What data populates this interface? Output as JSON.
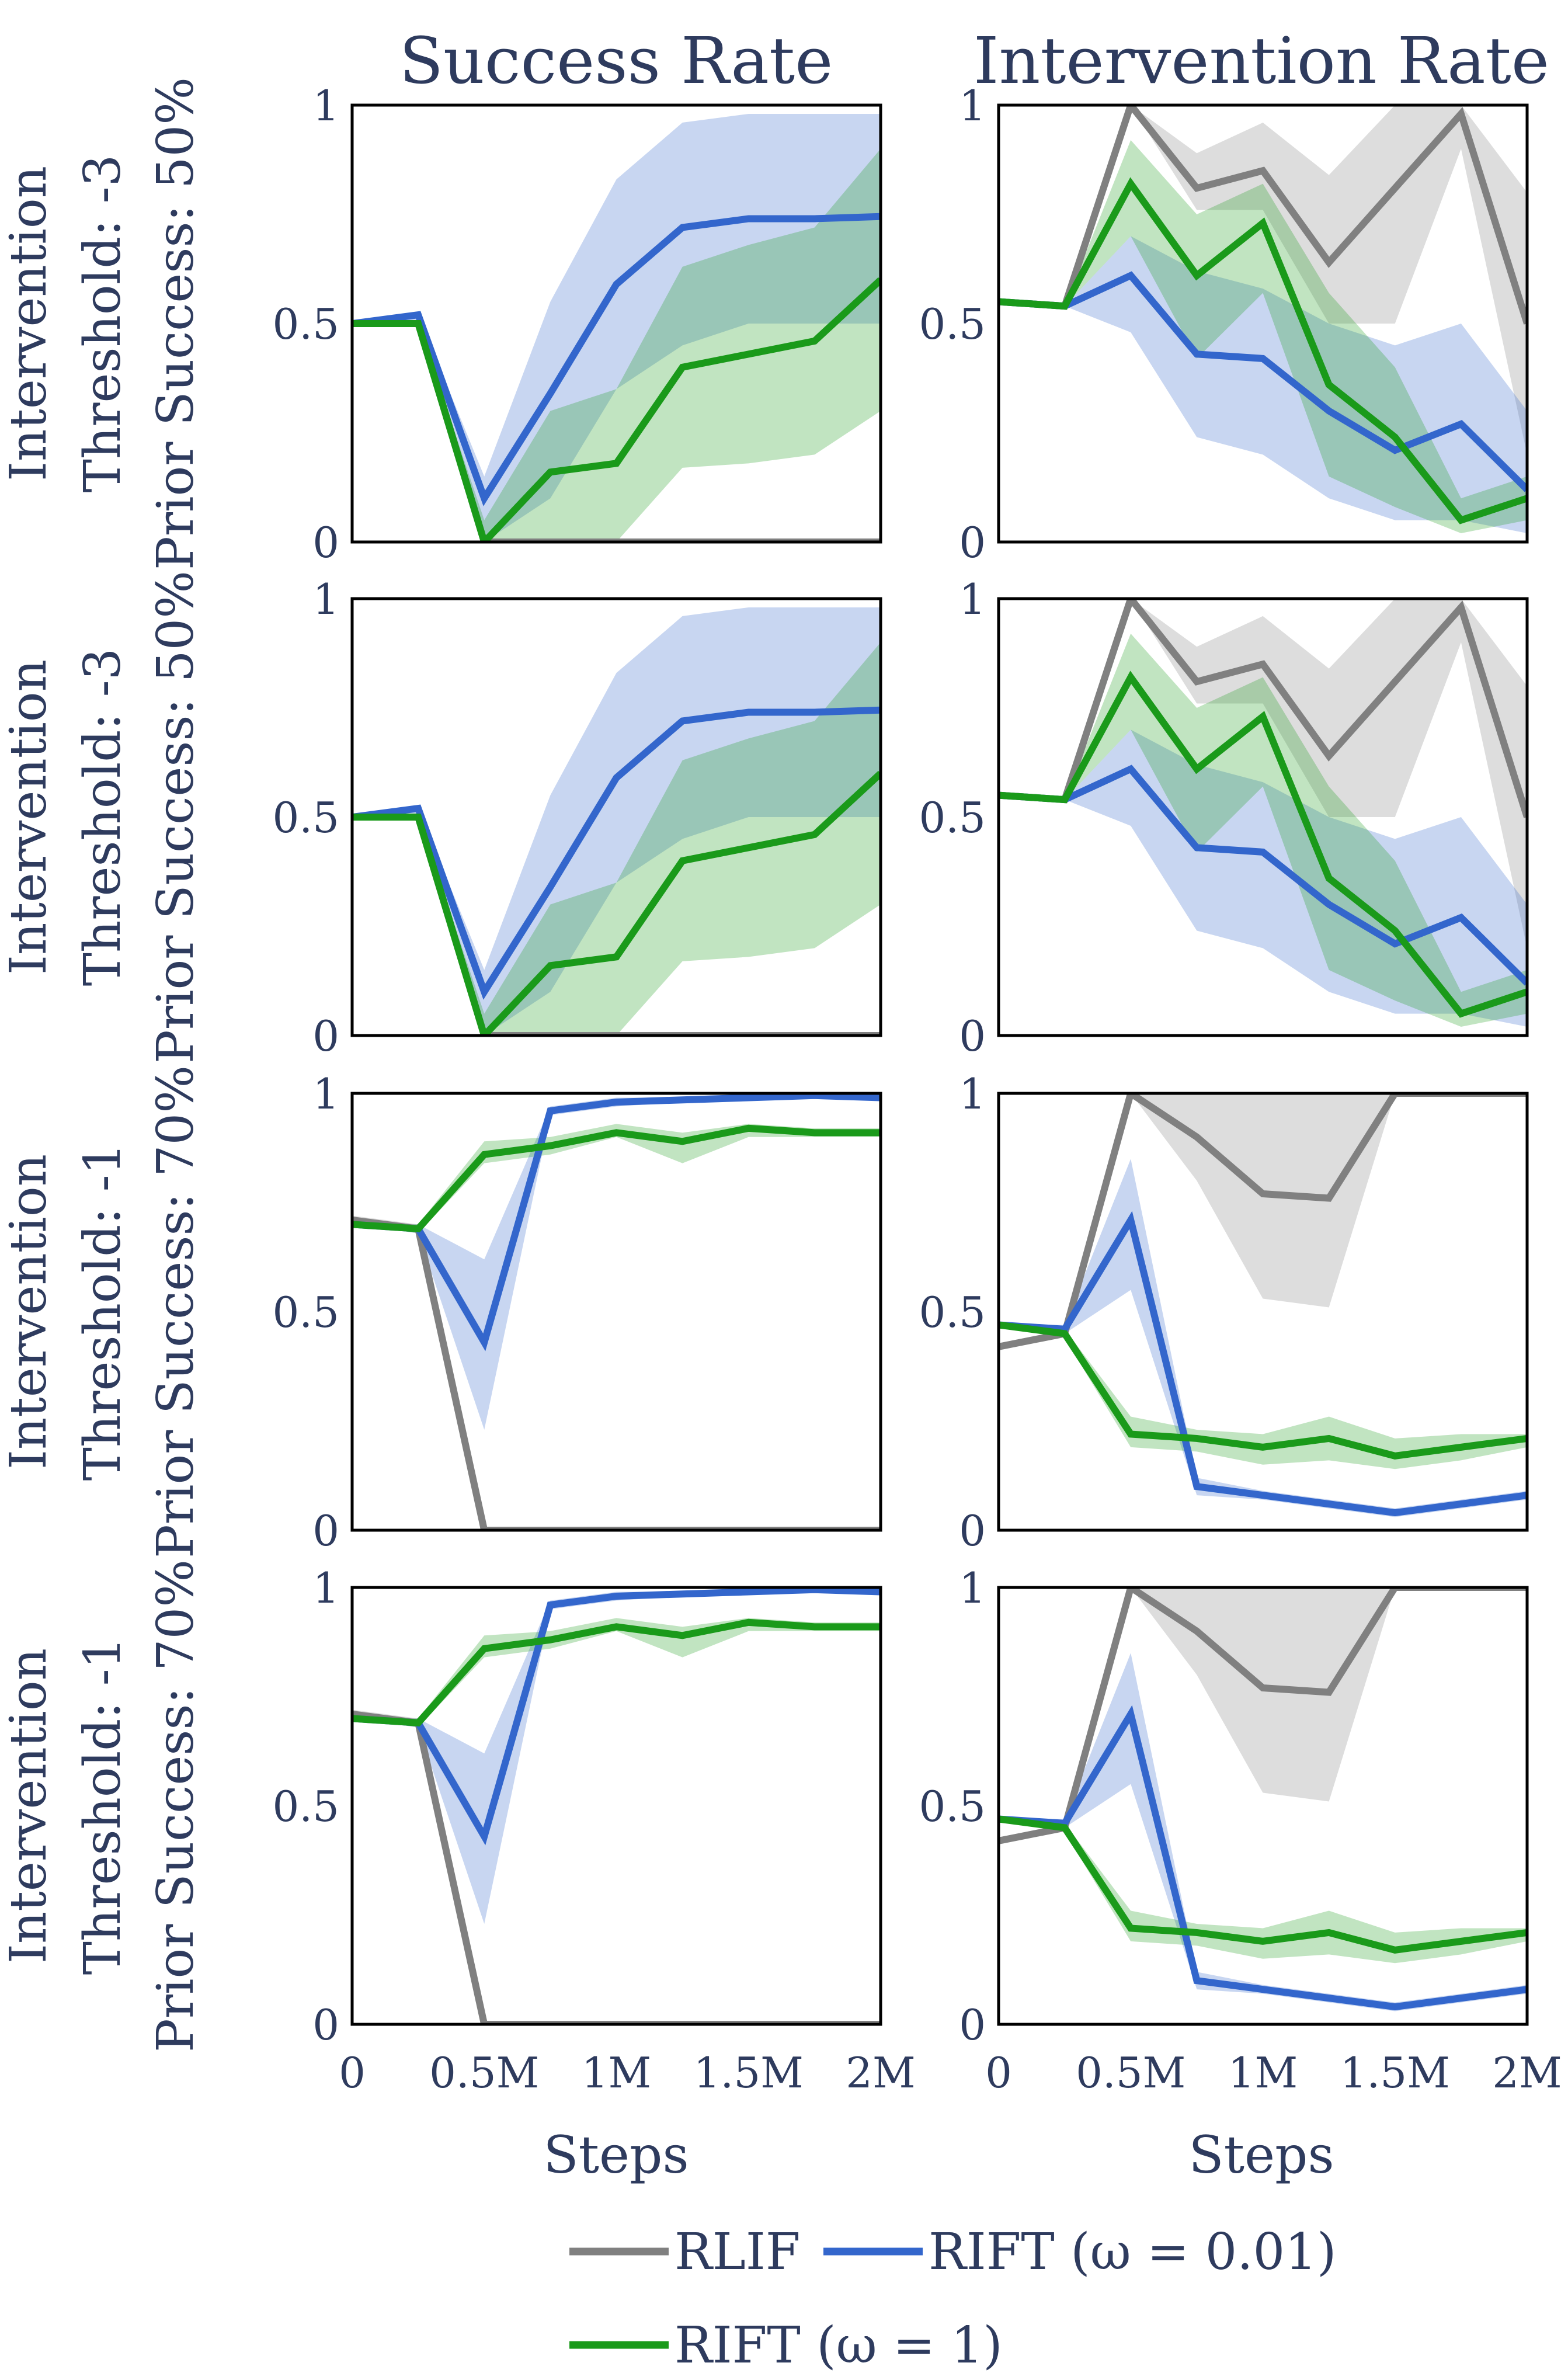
{
  "columns": [
    "Success Rate",
    "Intervention Rate"
  ],
  "rows": [
    [
      "Intervention",
      "Threshold: -3",
      "Prior Success: 50%"
    ],
    [
      "Intervention",
      "Threshold: -3",
      "Prior Success: 50%"
    ],
    [
      "Intervention",
      "Threshold: -1",
      "Prior Success: 70%"
    ],
    [
      "Intervention",
      "Threshold: -1",
      "Prior Success: 70%"
    ]
  ],
  "xlabel": "Steps",
  "x_tick_labels": [
    "0",
    "0.5M",
    "1M",
    "1.5M",
    "2M"
  ],
  "y_tick_labels": [
    "0",
    "0.5",
    "1"
  ],
  "legend": {
    "placement": "bottom",
    "entries": [
      {
        "label": "RLIF",
        "color": "#808080"
      },
      {
        "label": "RIFT (ω = 0.01)",
        "color": "#3366cc"
      },
      {
        "label": "RIFT (ω = 1)",
        "color": "#1a9a1a"
      }
    ]
  },
  "colors": {
    "RLIF": "#808080",
    "RIFT_001": "#3366cc",
    "RIFT_1": "#1a9a1a",
    "text": "#2e3b5e"
  },
  "chart_data": [
    {
      "type": "line",
      "row": 0,
      "column": "Success Rate",
      "x": [
        0,
        0.25,
        0.5,
        0.75,
        1.0,
        1.25,
        1.5,
        1.75,
        2.0
      ],
      "xlim": [
        0,
        2
      ],
      "ylim": [
        0,
        1
      ],
      "grid": false,
      "series": [
        {
          "name": "RLIF",
          "values": [
            0.5,
            0.5,
            0,
            0,
            0,
            0,
            0,
            0,
            0
          ],
          "lower": [
            0.5,
            0.5,
            0,
            0,
            0,
            0,
            0,
            0,
            0
          ],
          "upper": [
            0.5,
            0.5,
            0,
            0,
            0,
            0,
            0,
            0,
            0
          ]
        },
        {
          "name": "RIFT (ω = 0.01)",
          "values": [
            0.5,
            0.52,
            0.1,
            0.34,
            0.59,
            0.72,
            0.74,
            0.74,
            0.745
          ],
          "lower": [
            0.5,
            0.5,
            0,
            0.1,
            0.35,
            0.45,
            0.5,
            0.5,
            0.5
          ],
          "upper": [
            0.5,
            0.52,
            0.15,
            0.55,
            0.83,
            0.96,
            0.98,
            0.98,
            0.98
          ]
        },
        {
          "name": "RIFT (ω = 1)",
          "values": [
            0.5,
            0.5,
            0,
            0.16,
            0.18,
            0.4,
            0.43,
            0.46,
            0.6
          ],
          "lower": [
            0.5,
            0.5,
            0,
            0,
            0,
            0.17,
            0.18,
            0.2,
            0.3
          ],
          "upper": [
            0.5,
            0.5,
            0.05,
            0.3,
            0.35,
            0.63,
            0.68,
            0.72,
            0.9
          ]
        }
      ]
    },
    {
      "type": "line",
      "row": 0,
      "column": "Intervention Rate",
      "x": [
        0,
        0.25,
        0.5,
        0.75,
        1.0,
        1.25,
        1.5,
        1.75,
        2.0
      ],
      "xlim": [
        0,
        2
      ],
      "ylim": [
        0,
        1
      ],
      "grid": false,
      "series": [
        {
          "name": "RLIF",
          "values": [
            0.55,
            0.54,
            1.0,
            0.81,
            0.85,
            0.64,
            0.81,
            0.98,
            0.5
          ],
          "lower": [
            0.55,
            0.54,
            1.0,
            0.76,
            0.76,
            0.5,
            0.5,
            0.9,
            0.2
          ],
          "upper": [
            0.55,
            0.54,
            1.0,
            0.89,
            0.96,
            0.84,
            1.0,
            1.0,
            0.8
          ]
        },
        {
          "name": "RIFT (ω = 0.01)",
          "values": [
            0.55,
            0.54,
            0.61,
            0.43,
            0.42,
            0.3,
            0.21,
            0.27,
            0.12
          ],
          "lower": [
            0.55,
            0.54,
            0.48,
            0.24,
            0.2,
            0.1,
            0.05,
            0.05,
            0.02
          ],
          "upper": [
            0.55,
            0.54,
            0.7,
            0.62,
            0.58,
            0.5,
            0.45,
            0.5,
            0.3
          ]
        },
        {
          "name": "RIFT (ω = 1)",
          "values": [
            0.55,
            0.54,
            0.82,
            0.61,
            0.73,
            0.36,
            0.24,
            0.05,
            0.1
          ],
          "lower": [
            0.55,
            0.54,
            0.7,
            0.42,
            0.57,
            0.15,
            0.08,
            0.02,
            0.05
          ],
          "upper": [
            0.55,
            0.54,
            0.92,
            0.75,
            0.82,
            0.57,
            0.4,
            0.1,
            0.15
          ]
        }
      ]
    },
    {
      "type": "line",
      "row": 1,
      "column": "Success Rate",
      "x": [
        0,
        0.25,
        0.5,
        0.75,
        1.0,
        1.25,
        1.5,
        1.75,
        2.0
      ],
      "xlim": [
        0,
        2
      ],
      "ylim": [
        0,
        1
      ],
      "grid": false,
      "series": [
        {
          "name": "RLIF",
          "values": [
            0.5,
            0.5,
            0,
            0,
            0,
            0,
            0,
            0,
            0
          ],
          "lower": [
            0.5,
            0.5,
            0,
            0,
            0,
            0,
            0,
            0,
            0
          ],
          "upper": [
            0.5,
            0.5,
            0,
            0,
            0,
            0,
            0,
            0,
            0
          ]
        },
        {
          "name": "RIFT (ω = 0.01)",
          "values": [
            0.5,
            0.52,
            0.1,
            0.34,
            0.59,
            0.72,
            0.74,
            0.74,
            0.745
          ],
          "lower": [
            0.5,
            0.5,
            0,
            0.1,
            0.35,
            0.45,
            0.5,
            0.5,
            0.5
          ],
          "upper": [
            0.5,
            0.52,
            0.15,
            0.55,
            0.83,
            0.96,
            0.98,
            0.98,
            0.98
          ]
        },
        {
          "name": "RIFT (ω = 1)",
          "values": [
            0.5,
            0.5,
            0,
            0.16,
            0.18,
            0.4,
            0.43,
            0.46,
            0.6
          ],
          "lower": [
            0.5,
            0.5,
            0,
            0,
            0,
            0.17,
            0.18,
            0.2,
            0.3
          ],
          "upper": [
            0.5,
            0.5,
            0.05,
            0.3,
            0.35,
            0.63,
            0.68,
            0.72,
            0.9
          ]
        }
      ]
    },
    {
      "type": "line",
      "row": 1,
      "column": "Intervention Rate",
      "x": [
        0,
        0.25,
        0.5,
        0.75,
        1.0,
        1.25,
        1.5,
        1.75,
        2.0
      ],
      "xlim": [
        0,
        2
      ],
      "ylim": [
        0,
        1
      ],
      "grid": false,
      "series": [
        {
          "name": "RLIF",
          "values": [
            0.55,
            0.54,
            1.0,
            0.81,
            0.85,
            0.64,
            0.81,
            0.98,
            0.5
          ],
          "lower": [
            0.55,
            0.54,
            1.0,
            0.76,
            0.76,
            0.5,
            0.5,
            0.9,
            0.2
          ],
          "upper": [
            0.55,
            0.54,
            1.0,
            0.89,
            0.96,
            0.84,
            1.0,
            1.0,
            0.8
          ]
        },
        {
          "name": "RIFT (ω = 0.01)",
          "values": [
            0.55,
            0.54,
            0.61,
            0.43,
            0.42,
            0.3,
            0.21,
            0.27,
            0.12
          ],
          "lower": [
            0.55,
            0.54,
            0.48,
            0.24,
            0.2,
            0.1,
            0.05,
            0.05,
            0.02
          ],
          "upper": [
            0.55,
            0.54,
            0.7,
            0.62,
            0.58,
            0.5,
            0.45,
            0.5,
            0.3
          ]
        },
        {
          "name": "RIFT (ω = 1)",
          "values": [
            0.55,
            0.54,
            0.82,
            0.61,
            0.73,
            0.36,
            0.24,
            0.05,
            0.1
          ],
          "lower": [
            0.55,
            0.54,
            0.7,
            0.42,
            0.57,
            0.15,
            0.08,
            0.02,
            0.05
          ],
          "upper": [
            0.55,
            0.54,
            0.92,
            0.75,
            0.82,
            0.57,
            0.4,
            0.1,
            0.15
          ]
        }
      ]
    },
    {
      "type": "line",
      "row": 2,
      "column": "Success Rate",
      "x": [
        0,
        0.25,
        0.5,
        0.75,
        1.0,
        1.25,
        1.5,
        1.75,
        2.0
      ],
      "xlim": [
        0,
        2
      ],
      "ylim": [
        0,
        1
      ],
      "grid": false,
      "series": [
        {
          "name": "RLIF",
          "values": [
            0.71,
            0.69,
            0,
            0,
            0,
            0,
            0,
            0,
            0
          ],
          "lower": [
            0.7,
            0.68,
            0,
            0,
            0,
            0,
            0,
            0,
            0
          ],
          "upper": [
            0.72,
            0.7,
            0,
            0,
            0,
            0,
            0,
            0,
            0
          ]
        },
        {
          "name": "RIFT (ω = 0.01)",
          "values": [
            0.7,
            0.69,
            0.43,
            0.96,
            0.98,
            0.985,
            0.99,
            0.995,
            0.99
          ],
          "lower": [
            0.7,
            0.68,
            0.23,
            0.95,
            0.97,
            0.98,
            0.985,
            0.99,
            0.985
          ],
          "upper": [
            0.7,
            0.7,
            0.62,
            0.97,
            0.99,
            0.99,
            0.995,
            1.0,
            0.995
          ]
        },
        {
          "name": "RIFT (ω = 1)",
          "values": [
            0.7,
            0.69,
            0.86,
            0.88,
            0.91,
            0.89,
            0.92,
            0.91,
            0.91
          ],
          "lower": [
            0.7,
            0.68,
            0.84,
            0.86,
            0.9,
            0.84,
            0.9,
            0.9,
            0.9
          ],
          "upper": [
            0.7,
            0.7,
            0.89,
            0.9,
            0.93,
            0.91,
            0.93,
            0.92,
            0.92
          ]
        }
      ]
    },
    {
      "type": "line",
      "row": 2,
      "column": "Intervention Rate",
      "x": [
        0,
        0.25,
        0.5,
        0.75,
        1.0,
        1.25,
        1.5,
        1.75,
        2.0
      ],
      "xlim": [
        0,
        2
      ],
      "ylim": [
        0,
        1
      ],
      "grid": false,
      "series": [
        {
          "name": "RLIF",
          "values": [
            0.42,
            0.45,
            1.0,
            0.9,
            0.77,
            0.76,
            1.0,
            1.0,
            1.0
          ],
          "lower": [
            0.42,
            0.45,
            1.0,
            0.8,
            0.53,
            0.51,
            1.0,
            1.0,
            1.0
          ],
          "upper": [
            0.42,
            0.45,
            1.0,
            1.0,
            1.0,
            1.0,
            1.0,
            1.0,
            1.0
          ]
        },
        {
          "name": "RIFT (ω = 0.01)",
          "values": [
            0.47,
            0.46,
            0.71,
            0.1,
            0.08,
            0.06,
            0.04,
            0.06,
            0.08
          ],
          "lower": [
            0.47,
            0.45,
            0.55,
            0.08,
            0.07,
            0.05,
            0.03,
            0.05,
            0.07
          ],
          "upper": [
            0.47,
            0.47,
            0.85,
            0.12,
            0.09,
            0.07,
            0.05,
            0.07,
            0.09
          ]
        },
        {
          "name": "RIFT (ω = 1)",
          "values": [
            0.47,
            0.45,
            0.22,
            0.21,
            0.19,
            0.21,
            0.17,
            0.19,
            0.21
          ],
          "lower": [
            0.47,
            0.44,
            0.19,
            0.18,
            0.15,
            0.16,
            0.14,
            0.16,
            0.19
          ],
          "upper": [
            0.47,
            0.46,
            0.26,
            0.23,
            0.22,
            0.26,
            0.21,
            0.22,
            0.22
          ]
        }
      ]
    },
    {
      "type": "line",
      "row": 3,
      "column": "Success Rate",
      "x": [
        0,
        0.25,
        0.5,
        0.75,
        1.0,
        1.25,
        1.5,
        1.75,
        2.0
      ],
      "xlim": [
        0,
        2
      ],
      "ylim": [
        0,
        1
      ],
      "grid": false,
      "series": [
        {
          "name": "RLIF",
          "values": [
            0.71,
            0.69,
            0,
            0,
            0,
            0,
            0,
            0,
            0
          ],
          "lower": [
            0.7,
            0.68,
            0,
            0,
            0,
            0,
            0,
            0,
            0
          ],
          "upper": [
            0.72,
            0.7,
            0,
            0,
            0,
            0,
            0,
            0,
            0
          ]
        },
        {
          "name": "RIFT (ω = 0.01)",
          "values": [
            0.7,
            0.69,
            0.43,
            0.96,
            0.98,
            0.985,
            0.99,
            0.995,
            0.99
          ],
          "lower": [
            0.7,
            0.68,
            0.23,
            0.95,
            0.97,
            0.98,
            0.985,
            0.99,
            0.985
          ],
          "upper": [
            0.7,
            0.7,
            0.62,
            0.97,
            0.99,
            0.99,
            0.995,
            1.0,
            0.995
          ]
        },
        {
          "name": "RIFT (ω = 1)",
          "values": [
            0.7,
            0.69,
            0.86,
            0.88,
            0.91,
            0.89,
            0.92,
            0.91,
            0.91
          ],
          "lower": [
            0.7,
            0.68,
            0.84,
            0.86,
            0.9,
            0.84,
            0.9,
            0.9,
            0.9
          ],
          "upper": [
            0.7,
            0.7,
            0.89,
            0.9,
            0.93,
            0.91,
            0.93,
            0.92,
            0.92
          ]
        }
      ]
    },
    {
      "type": "line",
      "row": 3,
      "column": "Intervention Rate",
      "x": [
        0,
        0.25,
        0.5,
        0.75,
        1.0,
        1.25,
        1.5,
        1.75,
        2.0
      ],
      "xlim": [
        0,
        2
      ],
      "ylim": [
        0,
        1
      ],
      "grid": false,
      "series": [
        {
          "name": "RLIF",
          "values": [
            0.42,
            0.45,
            1.0,
            0.9,
            0.77,
            0.76,
            1.0,
            1.0,
            1.0
          ],
          "lower": [
            0.42,
            0.45,
            1.0,
            0.8,
            0.53,
            0.51,
            1.0,
            1.0,
            1.0
          ],
          "upper": [
            0.42,
            0.45,
            1.0,
            1.0,
            1.0,
            1.0,
            1.0,
            1.0,
            1.0
          ]
        },
        {
          "name": "RIFT (ω = 0.01)",
          "values": [
            0.47,
            0.46,
            0.71,
            0.1,
            0.08,
            0.06,
            0.04,
            0.06,
            0.08
          ],
          "lower": [
            0.47,
            0.45,
            0.55,
            0.08,
            0.07,
            0.05,
            0.03,
            0.05,
            0.07
          ],
          "upper": [
            0.47,
            0.47,
            0.85,
            0.12,
            0.09,
            0.07,
            0.05,
            0.07,
            0.09
          ]
        },
        {
          "name": "RIFT (ω = 1)",
          "values": [
            0.47,
            0.45,
            0.22,
            0.21,
            0.19,
            0.21,
            0.17,
            0.19,
            0.21
          ],
          "lower": [
            0.47,
            0.44,
            0.19,
            0.18,
            0.15,
            0.16,
            0.14,
            0.16,
            0.19
          ],
          "upper": [
            0.47,
            0.46,
            0.26,
            0.23,
            0.22,
            0.26,
            0.21,
            0.22,
            0.22
          ]
        }
      ]
    }
  ]
}
